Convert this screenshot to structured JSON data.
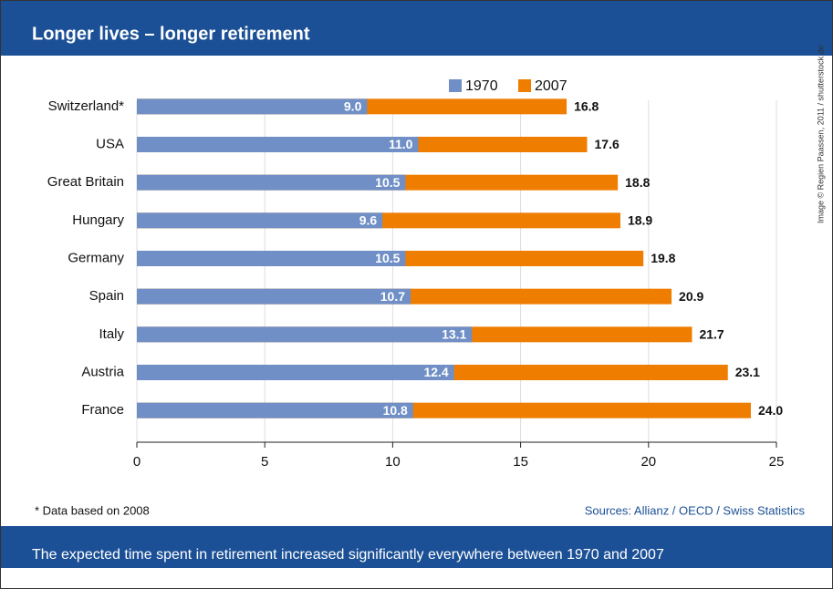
{
  "chart_data": {
    "type": "bar",
    "title": "Longer lives – longer retirement",
    "caption": "The expected time spent in retirement increased significantly everywhere between 1970 and 2007",
    "footnote": "* Data based on 2008",
    "source": "Sources: Allianz / OECD / Swiss Statistics",
    "credit": "Image © Regien Paassen, 2011 / shutterstock.de",
    "orientation": "horizontal",
    "categories": [
      "Switzerland*",
      "USA",
      "Great Britain",
      "Hungary",
      "Germany",
      "Spain",
      "Italy",
      "Austria",
      "France"
    ],
    "series": [
      {
        "name": "1970",
        "color": "#6f8fc6",
        "values": [
          9.0,
          11.0,
          10.5,
          9.6,
          10.5,
          10.7,
          13.1,
          12.4,
          10.8
        ],
        "value_labels": [
          "9.0",
          "11.0",
          "10.5",
          "9.6",
          "10.5",
          "10.7",
          "13.1",
          "12.4",
          "10.8"
        ]
      },
      {
        "name": "2007",
        "color": "#ef7d00",
        "values": [
          16.8,
          17.6,
          18.8,
          18.9,
          19.8,
          20.9,
          21.7,
          23.1,
          24.0
        ],
        "value_labels": [
          "16.8",
          "17.6",
          "18.8",
          "18.9",
          "19.8",
          "20.9",
          "21.7",
          "23.1",
          "24.0"
        ]
      }
    ],
    "xlim": [
      0,
      25
    ],
    "xticks": [
      0,
      5,
      10,
      15,
      20,
      25
    ],
    "grid": true,
    "legend": "top"
  }
}
